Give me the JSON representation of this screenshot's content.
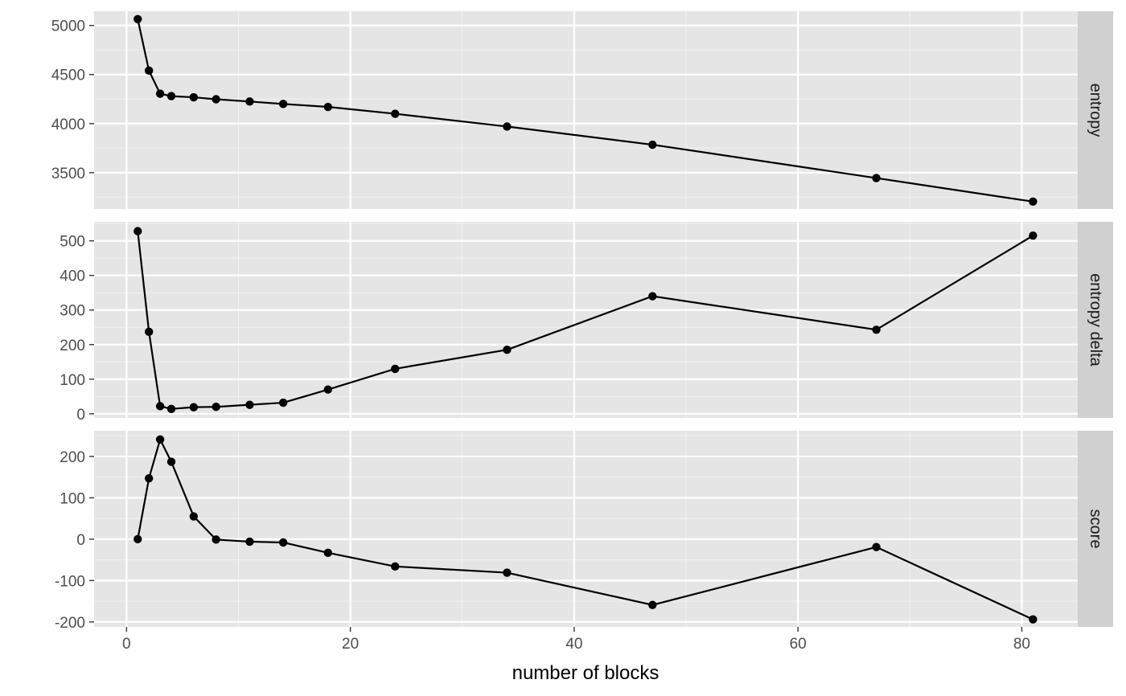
{
  "chart_data": {
    "type": "line",
    "xlabel": "number of blocks",
    "xlim": [
      -2.9,
      85
    ],
    "x_breaks": [
      0,
      20,
      40,
      60,
      80
    ],
    "x": [
      1,
      2,
      3,
      4,
      6,
      8,
      11,
      14,
      18,
      24,
      34,
      47,
      67,
      81
    ],
    "grid": true,
    "facets": [
      {
        "name": "entropy",
        "ylim": [
          3130,
          5145
        ],
        "y_breaks": [
          3500,
          4000,
          4500,
          5000
        ],
        "values": [
          5065,
          4540,
          4305,
          4280,
          4268,
          4248,
          4225,
          4200,
          4170,
          4100,
          3970,
          3785,
          3445,
          3205
        ]
      },
      {
        "name": "entropy delta",
        "ylim": [
          -12,
          555
        ],
        "y_breaks": [
          0,
          100,
          200,
          300,
          400,
          500
        ],
        "values": [
          528,
          237,
          22,
          14,
          19,
          20,
          26,
          32,
          70,
          130,
          185,
          340,
          243,
          515
        ]
      },
      {
        "name": "score",
        "ylim": [
          -212,
          262
        ],
        "y_breaks": [
          -200,
          -100,
          0,
          100,
          200
        ],
        "values": [
          0,
          147,
          241,
          187,
          55,
          -1,
          -6,
          -8,
          -33,
          -66,
          -81,
          -159,
          -19,
          -194
        ]
      }
    ]
  }
}
